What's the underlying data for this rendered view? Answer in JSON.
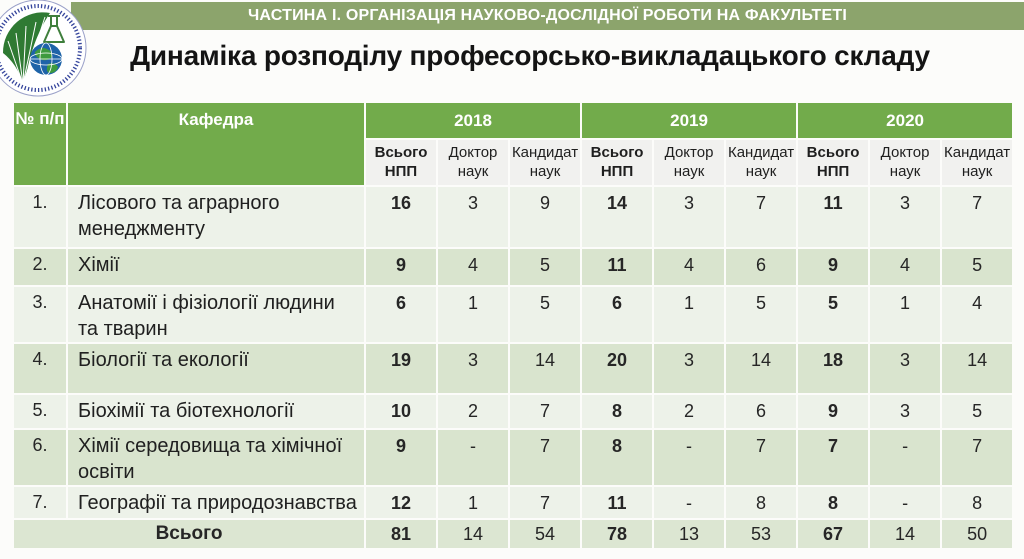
{
  "banner": {
    "text": "ЧАСТИНА І. ОРГАНІЗАЦІЯ НАУКОВО-ДОСЛІДНОЇ РОБОТИ НА ФАКУЛЬТЕТІ"
  },
  "title": "Динаміка розподілу професорсько-викладацького складу",
  "logo": {
    "name": "university-emblem"
  },
  "table": {
    "col_num_header": "№ п/п",
    "col_dept_header": "Кафедра",
    "year_groups": [
      "2018",
      "2019",
      "2020"
    ],
    "sub_headers": [
      "Всього НПП",
      "Доктор наук",
      "Кандидат наук"
    ],
    "rows": [
      {
        "num": "1.",
        "dept": "Лісового та аграрного менеджменту",
        "values": [
          "16",
          "3",
          "9",
          "14",
          "3",
          "7",
          "11",
          "3",
          "7"
        ]
      },
      {
        "num": "2.",
        "dept": "Хімії",
        "values": [
          "9",
          "4",
          "5",
          "11",
          "4",
          "6",
          "9",
          "4",
          "5"
        ]
      },
      {
        "num": "3.",
        "dept": "Анатомії і фізіології людини та тварин",
        "values": [
          "6",
          "1",
          "5",
          "6",
          "1",
          "5",
          "5",
          "1",
          "4"
        ]
      },
      {
        "num": "4.",
        "dept": "Біології та екології",
        "values": [
          "19",
          "3",
          "14",
          "20",
          "3",
          "14",
          "18",
          "3",
          "14"
        ]
      },
      {
        "num": "5.",
        "dept": "Біохімії та біотехнології",
        "values": [
          "10",
          "2",
          "7",
          "8",
          "2",
          "6",
          "9",
          "3",
          "5"
        ]
      },
      {
        "num": "6.",
        "dept": "Хімії середовища та хімічної освіти",
        "values": [
          "9",
          "-",
          "7",
          "8",
          "-",
          "7",
          "7",
          "-",
          "7"
        ]
      },
      {
        "num": "7.",
        "dept": "Географії та природознавства",
        "values": [
          "12",
          "1",
          "7",
          "11",
          "-",
          "8",
          "8",
          "-",
          "8"
        ]
      }
    ],
    "footer": {
      "label": "Всього",
      "values": [
        "81",
        "14",
        "54",
        "78",
        "13",
        "53",
        "67",
        "14",
        "50"
      ]
    }
  },
  "colors": {
    "banner_bg": "#8CA46C",
    "header_green": "#72AB4B",
    "row_light": "#EDF2E9",
    "row_dark": "#D9E4CE",
    "subheader_bg": "#F1F1EF",
    "footer_bg": "#DCE6D2",
    "text_dark": "#262626"
  }
}
